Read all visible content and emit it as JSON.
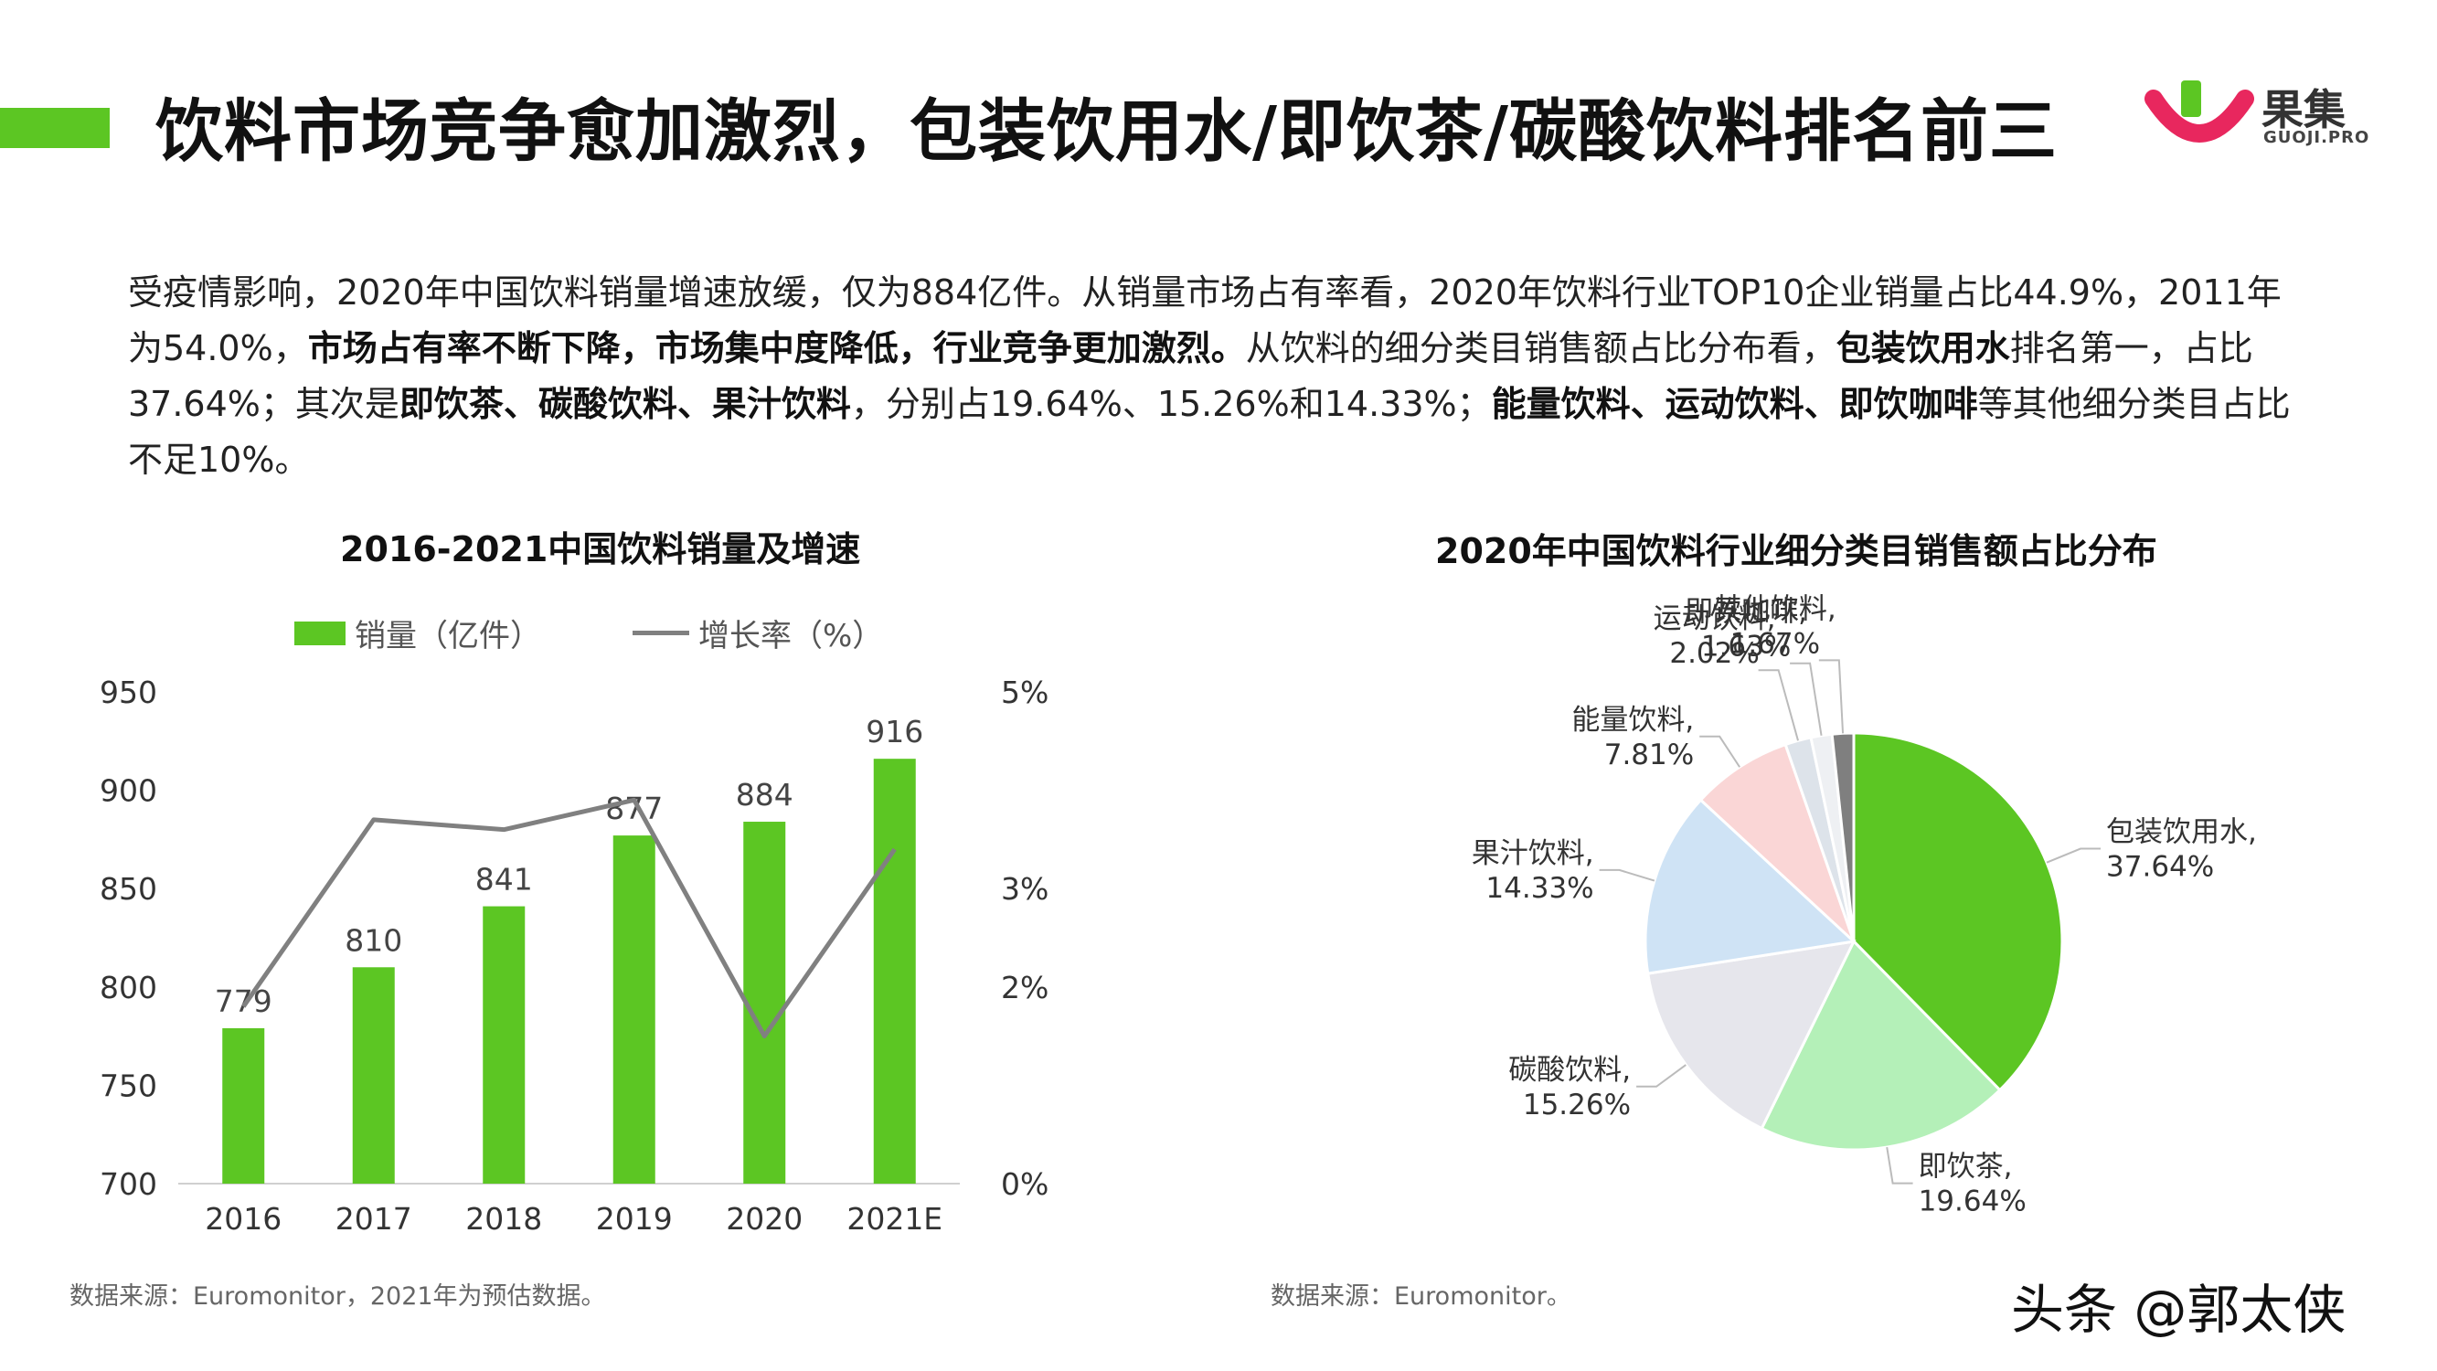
{
  "title": "饮料市场竞争愈加激烈，包装饮用水/即饮茶/碳酸饮料排名前三",
  "logo": {
    "name": "果集",
    "sub": "GUOJI.PRO"
  },
  "intro": [
    {
      "text": "受疫情影响，2020年中国饮料销量增速放缓，仅为884亿件。从销量市场占有率看，2020年饮料行业TOP10企业销量占比44.9%，2011年为54.0%，",
      "bold": false
    },
    {
      "text": "市场占有率不断下降，市场集中度降低，行业竞争更加激烈。",
      "bold": true
    },
    {
      "text": "从饮料的细分类目销售额占比分布看，",
      "bold": false
    },
    {
      "text": "包装饮用水",
      "bold": true
    },
    {
      "text": "排名第一，占比37.64%；其次是",
      "bold": false
    },
    {
      "text": "即饮茶、碳酸饮料、果汁饮料",
      "bold": true
    },
    {
      "text": "，分别占19.64%、15.26%和14.33%；",
      "bold": false
    },
    {
      "text": "能量饮料、运动饮料、即饮咖啡",
      "bold": true
    },
    {
      "text": "等其他细分类目占比不足10%。",
      "bold": false
    }
  ],
  "colors": {
    "accent": "#5cc623",
    "line": "#808080"
  },
  "left_chart": {
    "title": "2016-2021中国饮料销量及增速",
    "legend_bar": "销量（亿件）",
    "legend_line": "增长率（%）",
    "source": "数据来源：Euromonitor，2021年为预估数据。"
  },
  "right_chart": {
    "title": "2020年中国饮料行业细分类目销售额占比分布",
    "source": "数据来源：Euromonitor。"
  },
  "corner_mark": "头条 @郭太侠",
  "chart_data": [
    {
      "type": "bar",
      "title": "2016-2021中国饮料销量及增速",
      "categories": [
        "2016",
        "2017",
        "2018",
        "2019",
        "2020",
        "2021E"
      ],
      "series": [
        {
          "name": "销量（亿件）",
          "type": "bar",
          "axis": "left",
          "values": [
            779,
            810,
            841,
            877,
            884,
            916
          ],
          "labels": [
            "779",
            "810",
            "841",
            "877",
            "884",
            "916"
          ]
        },
        {
          "name": "增长率（%）",
          "type": "line",
          "axis": "right",
          "values": [
            1.8,
            3.7,
            3.6,
            3.9,
            1.5,
            3.4
          ]
        }
      ],
      "ylim": [
        700,
        950
      ],
      "yticks": [
        "700",
        "750",
        "800",
        "850",
        "900",
        "950"
      ],
      "y2lim": [
        0,
        5
      ],
      "y2ticks": [
        "0%",
        "2%",
        "3%",
        "5%"
      ],
      "y2tick_values": [
        0,
        2,
        3,
        5
      ],
      "legend": "top"
    },
    {
      "type": "pie",
      "title": "2020年中国饮料行业细分类目销售额占比分布",
      "slices": [
        {
          "name": "包装饮用水",
          "value": 37.64,
          "label": "37.64%",
          "color": "#5cc623"
        },
        {
          "name": "即饮茶",
          "value": 19.64,
          "label": "19.64%",
          "color": "#b4f0b8"
        },
        {
          "name": "碳酸饮料",
          "value": 15.26,
          "label": "15.26%",
          "color": "#e6e6ec"
        },
        {
          "name": "果汁饮料",
          "value": 14.33,
          "label": "14.33%",
          "color": "#cfe3f5"
        },
        {
          "name": "能量饮料",
          "value": 7.81,
          "label": "7.81%",
          "color": "#fad6d6"
        },
        {
          "name": "运动饮料",
          "value": 2.02,
          "label": "2.02%",
          "color": "#dde3ea"
        },
        {
          "name": "即饮咖啡",
          "value": 1.63,
          "label": "1.63%",
          "color": "#eef0f3"
        },
        {
          "name": "其他饮料",
          "value": 1.67,
          "label": "1.67%",
          "color": "#7f7f7f"
        }
      ]
    }
  ]
}
